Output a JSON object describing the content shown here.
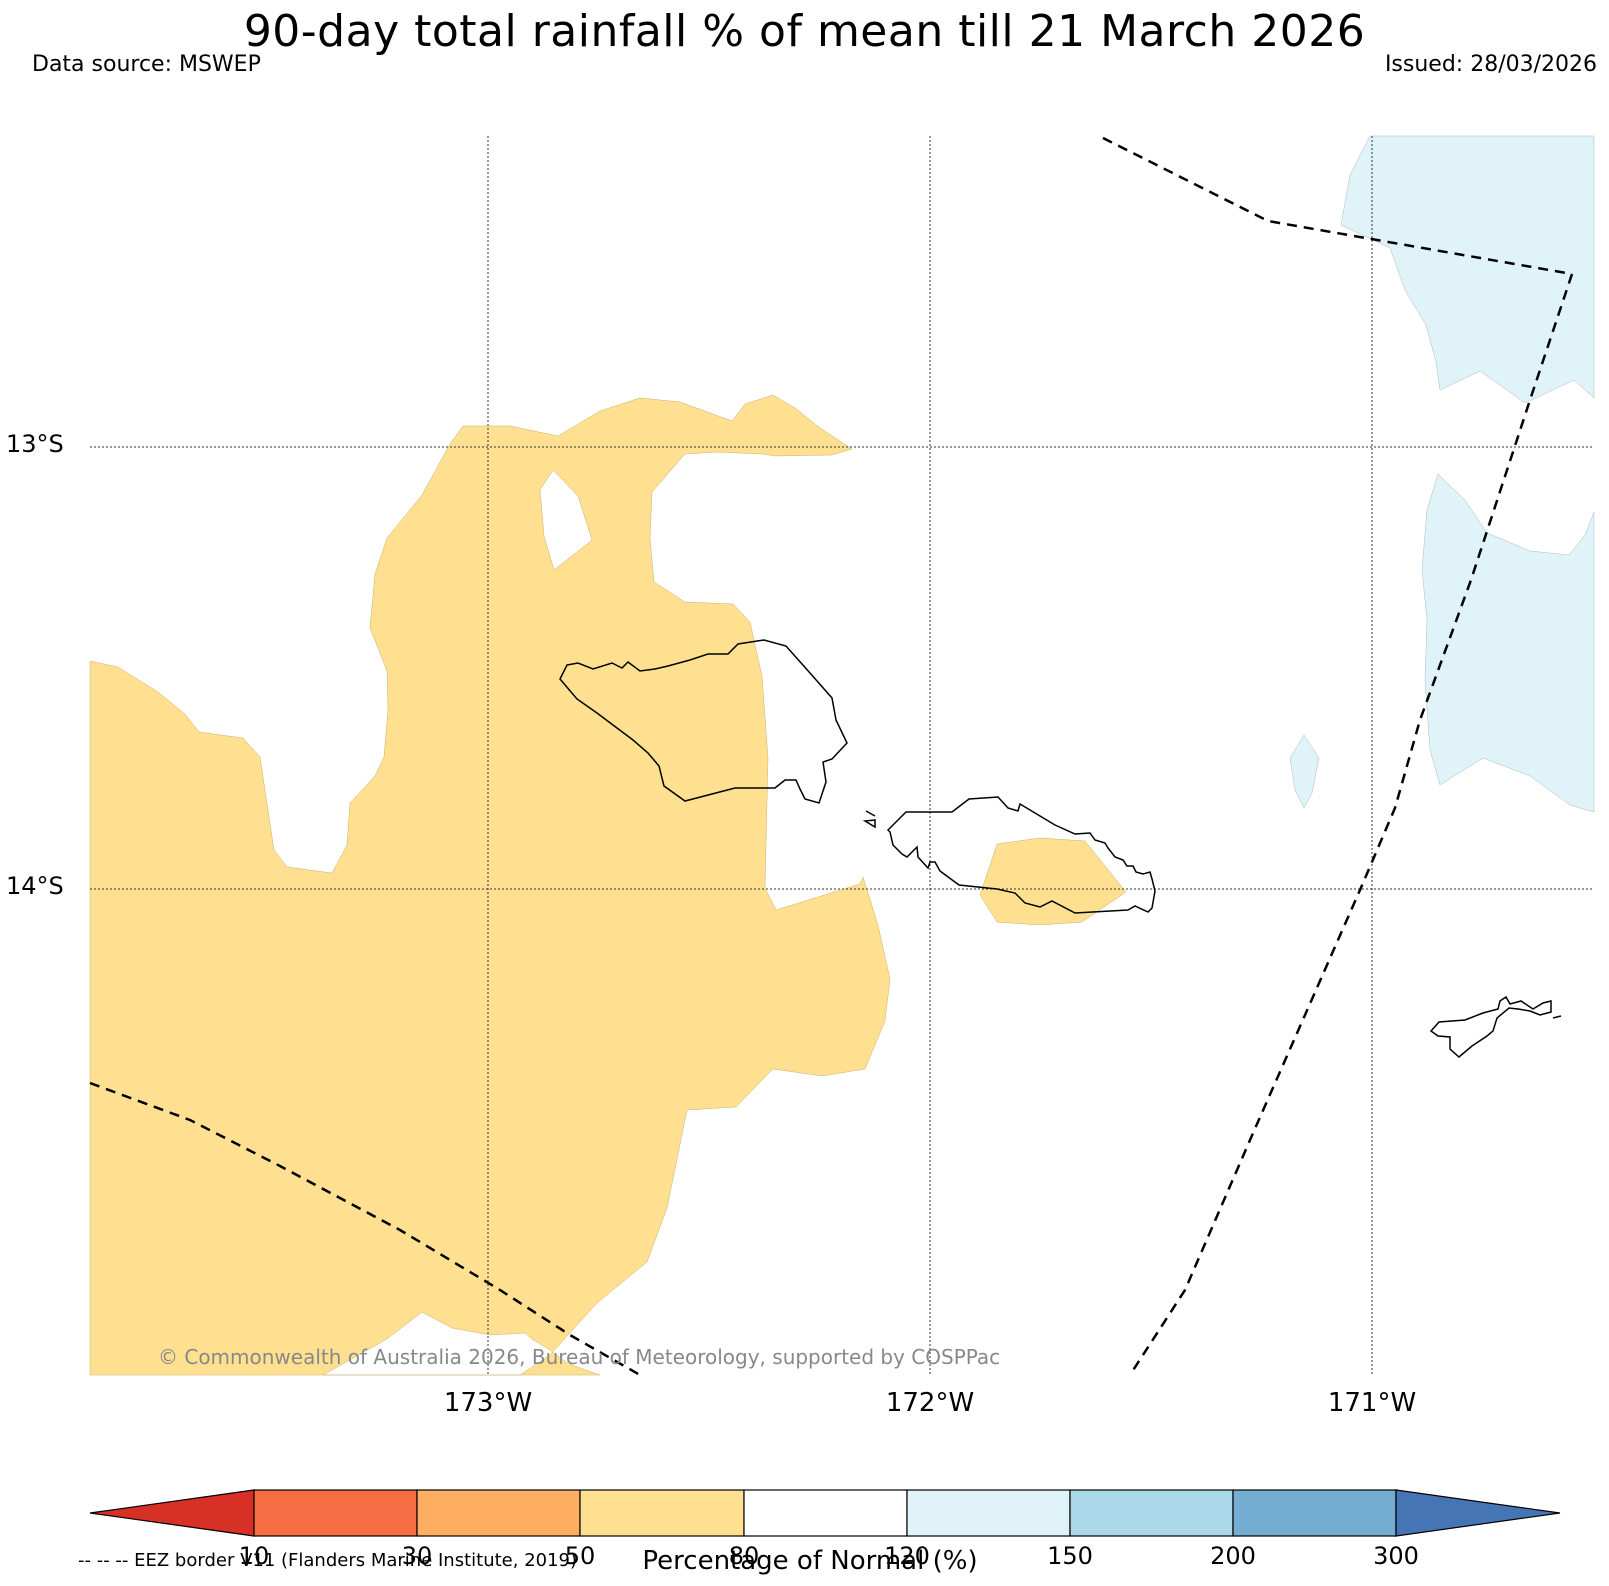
{
  "title": "90-day total rainfall % of mean till 21 March 2026",
  "data_source": "Data source: MSWEP",
  "issued": "Issued: 28/03/2026",
  "copyright": "© Commonwealth of Australia 2026, Bureau of Meteorology, supported by COSPPac",
  "eez_note": "-- -- -- EEZ border V11 (Flanders Marine Institute, 2019)",
  "axes": {
    "lat_labels": [
      "13°S",
      "14°S"
    ],
    "lon_labels": [
      "173°W",
      "172°W",
      "171°W"
    ]
  },
  "colorbar": {
    "title": "Percentage of Normal (%)",
    "ticks": [
      "10",
      "30",
      "50",
      "80",
      "120",
      "150",
      "200",
      "300"
    ],
    "colors": [
      "#d73027",
      "#f46d43",
      "#fdae61",
      "#fee090",
      "#ffffff",
      "#e0f3f8",
      "#abd9e9",
      "#74add1",
      "#4575b4"
    ]
  },
  "colors": {
    "dry_fill": "#fee090",
    "wet_fill": "#e0f3f8",
    "grid": "#333333"
  }
}
